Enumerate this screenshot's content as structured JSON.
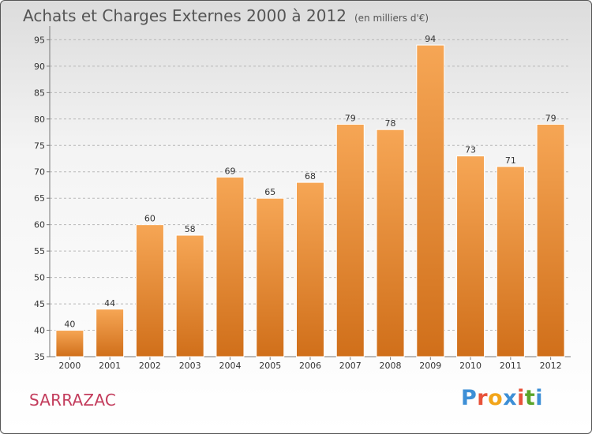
{
  "chart_data": {
    "type": "bar",
    "title": "Achats et Charges Externes 2000 à 2012",
    "unit_label": "(en milliers d'€)",
    "categories": [
      "2000",
      "2001",
      "2002",
      "2003",
      "2004",
      "2005",
      "2006",
      "2007",
      "2008",
      "2009",
      "2010",
      "2011",
      "2012"
    ],
    "values": [
      40,
      44,
      60,
      58,
      69,
      65,
      68,
      79,
      78,
      94,
      73,
      71,
      79
    ],
    "yticks": [
      35,
      40,
      45,
      50,
      55,
      60,
      65,
      70,
      75,
      80,
      85,
      90,
      95
    ],
    "ylim": [
      35,
      97
    ],
    "xlabel": "",
    "ylabel": "",
    "grid": "horizontal-dashed",
    "bar_color_top": "#f6a655",
    "bar_color_bottom": "#d06f1a"
  },
  "footer": {
    "location": "SARRAZAC",
    "brand_letters": [
      "P",
      "r",
      "o",
      "x",
      "i",
      "t",
      "i"
    ],
    "brand_colors": [
      "#3d8fd6",
      "#e8523a",
      "#f2a51a",
      "#3d8fd6",
      "#e8523a",
      "#5aa52a",
      "#3d8fd6"
    ]
  }
}
